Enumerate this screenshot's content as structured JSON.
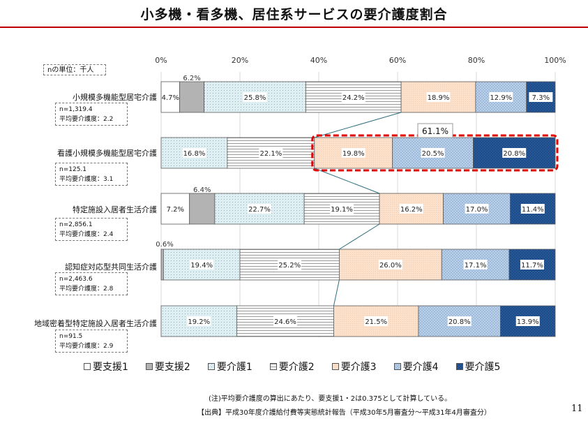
{
  "title": "小多機・看多機、居住系サービスの要介護度割合",
  "unit_note": "nの単位：千人",
  "footnote": "(注)平均要介護度の算出にあたり、要支援1・2は0.375として計算している。",
  "source": "【出典】平成30年度介護給付費等実態統計報告（平成30年5月審査分～平成31年4月審査分）",
  "page_number": "11",
  "callout_label": "61.1%",
  "colors": {
    "title_rule": "#c00000",
    "callout_border": "#e00000",
    "s1": "#ffffff",
    "s2": "#b3b3b3",
    "s3": "#ddeff2",
    "s4": "#ffffff",
    "s5": "#fbe0cc",
    "s6": "#b7cde6",
    "s7": "#1f4e8c"
  },
  "rows": [
    {
      "label": "小規模多機能型居宅介護",
      "n": "n=1,319.4",
      "avg": "平均要介護度：2.2"
    },
    {
      "label": "看護小規模多機能型居宅介護",
      "n": "n=125.1",
      "avg": "平均要介護度：3.1"
    },
    {
      "label": "特定施設入居者生活介護",
      "n": "n=2,856.1",
      "avg": "平均要介護度：2.4"
    },
    {
      "label": "認知症対応型共同生活介護",
      "n": "n=2,463.6",
      "avg": "平均要介護度：2.8"
    },
    {
      "label": "地域密着型特定施設入居者生活介護",
      "n": "n=91.5",
      "avg": "平均要介護度：2.9"
    }
  ],
  "chart_data": {
    "type": "bar",
    "orientation": "horizontal",
    "stacked": "percent",
    "categories": [
      "小規模多機能型居宅介護",
      "看護小規模多機能型居宅介護",
      "特定施設入居者生活介護",
      "認知症対応型共同生活介護",
      "地域密着型特定施設入居者生活介護"
    ],
    "xlim": [
      0,
      100
    ],
    "ticks": [
      "0%",
      "20%",
      "40%",
      "60%",
      "80%",
      "100%"
    ],
    "tick_values": [
      0,
      20,
      40,
      60,
      80,
      100
    ],
    "legend_position": "bottom",
    "series": [
      {
        "name": "要支援1",
        "values": [
          4.7,
          0,
          7.2,
          0,
          0
        ]
      },
      {
        "name": "要支援2",
        "values": [
          6.2,
          0,
          6.4,
          0.6,
          0
        ]
      },
      {
        "name": "要介護1",
        "values": [
          25.8,
          16.8,
          22.7,
          19.4,
          19.2
        ]
      },
      {
        "name": "要介護2",
        "values": [
          24.2,
          22.1,
          19.1,
          25.2,
          24.6
        ]
      },
      {
        "name": "要介護3",
        "values": [
          18.9,
          19.8,
          16.2,
          26.0,
          21.5
        ]
      },
      {
        "name": "要介護4",
        "values": [
          12.9,
          20.5,
          17.0,
          17.1,
          20.8
        ]
      },
      {
        "name": "要介護5",
        "values": [
          7.3,
          20.8,
          11.4,
          11.7,
          13.9
        ]
      }
    ],
    "labels": [
      [
        "4.7%",
        "6.2%",
        "25.8%",
        "24.2%",
        "18.9%",
        "12.9%",
        "7.3%"
      ],
      [
        null,
        null,
        "16.8%",
        "22.1%",
        "19.8%",
        "20.5%",
        "20.8%"
      ],
      [
        "7.2%",
        "6.4%",
        "22.7%",
        "19.1%",
        "16.2%",
        "17.0%",
        "11.4%"
      ],
      [
        null,
        "0.6%",
        "19.4%",
        "25.2%",
        "26.0%",
        "17.1%",
        "11.7%"
      ],
      [
        null,
        null,
        "19.2%",
        "24.6%",
        "21.5%",
        "20.8%",
        "13.9%"
      ]
    ],
    "annotation": {
      "text": "61.1%",
      "row": 1,
      "series_from": 4,
      "series_to": 6
    }
  }
}
